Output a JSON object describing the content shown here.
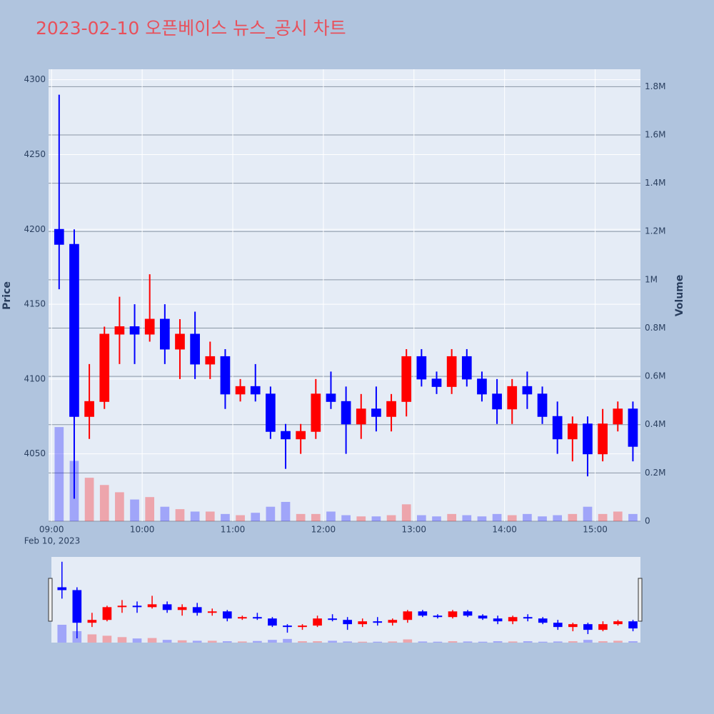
{
  "chart_data": {
    "type": "candlestick",
    "title": "2023-02-10 오픈베이스 뉴스_공시 차트",
    "y_label": "Price",
    "y2_label": "Volume",
    "x_date_label": "Feb 10, 2023",
    "increasing_color": "#ff0000",
    "decreasing_color": "#0000ff",
    "xlim": [
      "08:58",
      "15:30"
    ],
    "xticks": [
      "09:00",
      "10:00",
      "11:00",
      "12:00",
      "13:00",
      "14:00",
      "15:00"
    ],
    "ylim": [
      4005,
      4307
    ],
    "yticks": [
      4050,
      4100,
      4150,
      4200,
      4250,
      4300
    ],
    "y2lim": [
      0,
      1872000
    ],
    "y2ticks": [
      0,
      {
        "value": 200000,
        "label": "0.2M"
      },
      {
        "value": 400000,
        "label": "0.4M"
      },
      {
        "value": 600000,
        "label": "0.6M"
      },
      {
        "value": 800000,
        "label": "0.8M"
      },
      {
        "value": 1000000,
        "label": "1M"
      },
      {
        "value": 1200000,
        "label": "1.2M"
      },
      {
        "value": 1400000,
        "label": "1.4M"
      },
      {
        "value": 1600000,
        "label": "1.6M"
      },
      {
        "value": 1800000,
        "label": "1.8M"
      }
    ],
    "x": [
      "09:00",
      "09:10",
      "09:20",
      "09:30",
      "09:40",
      "09:50",
      "10:00",
      "10:10",
      "10:20",
      "10:30",
      "10:40",
      "10:50",
      "11:00",
      "11:10",
      "11:20",
      "11:30",
      "11:40",
      "11:50",
      "12:00",
      "12:10",
      "12:20",
      "12:30",
      "12:40",
      "12:50",
      "13:00",
      "13:10",
      "13:20",
      "13:30",
      "13:40",
      "13:50",
      "14:00",
      "14:10",
      "14:20",
      "14:30",
      "14:40",
      "14:50",
      "15:00",
      "15:10",
      "15:20"
    ],
    "open": [
      4200,
      4190,
      4075,
      4085,
      4130,
      4135,
      4130,
      4140,
      4120,
      4130,
      4110,
      4115,
      4090,
      4095,
      4090,
      4065,
      4060,
      4065,
      4090,
      4085,
      4070,
      4080,
      4075,
      4085,
      4115,
      4100,
      4095,
      4115,
      4100,
      4090,
      4080,
      4095,
      4090,
      4075,
      4060,
      4070,
      4050,
      4070,
      4080
    ],
    "high": [
      4290,
      4200,
      4110,
      4135,
      4155,
      4150,
      4170,
      4150,
      4140,
      4145,
      4125,
      4120,
      4100,
      4110,
      4095,
      4070,
      4070,
      4100,
      4105,
      4095,
      4090,
      4095,
      4090,
      4120,
      4120,
      4105,
      4120,
      4120,
      4105,
      4100,
      4100,
      4105,
      4095,
      4085,
      4075,
      4075,
      4080,
      4085,
      4085
    ],
    "low": [
      4160,
      4020,
      4060,
      4080,
      4110,
      4110,
      4125,
      4110,
      4100,
      4100,
      4100,
      4080,
      4085,
      4085,
      4060,
      4040,
      4050,
      4060,
      4080,
      4050,
      4060,
      4065,
      4065,
      4075,
      4095,
      4090,
      4090,
      4095,
      4085,
      4070,
      4070,
      4080,
      4070,
      4050,
      4045,
      4035,
      4045,
      4065,
      4045
    ],
    "close": [
      4190,
      4075,
      4085,
      4130,
      4135,
      4130,
      4140,
      4120,
      4130,
      4110,
      4115,
      4090,
      4095,
      4090,
      4065,
      4060,
      4065,
      4090,
      4085,
      4070,
      4080,
      4075,
      4085,
      4115,
      4100,
      4095,
      4115,
      4100,
      4090,
      4080,
      4095,
      4090,
      4075,
      4060,
      4070,
      4050,
      4070,
      4080,
      4055
    ],
    "volume": [
      390000,
      250000,
      180000,
      150000,
      120000,
      90000,
      100000,
      60000,
      50000,
      40000,
      40000,
      30000,
      25000,
      35000,
      60000,
      80000,
      30000,
      30000,
      40000,
      25000,
      20000,
      20000,
      25000,
      70000,
      25000,
      20000,
      30000,
      25000,
      20000,
      30000,
      25000,
      30000,
      20000,
      25000,
      30000,
      60000,
      30000,
      40000,
      30000
    ]
  }
}
